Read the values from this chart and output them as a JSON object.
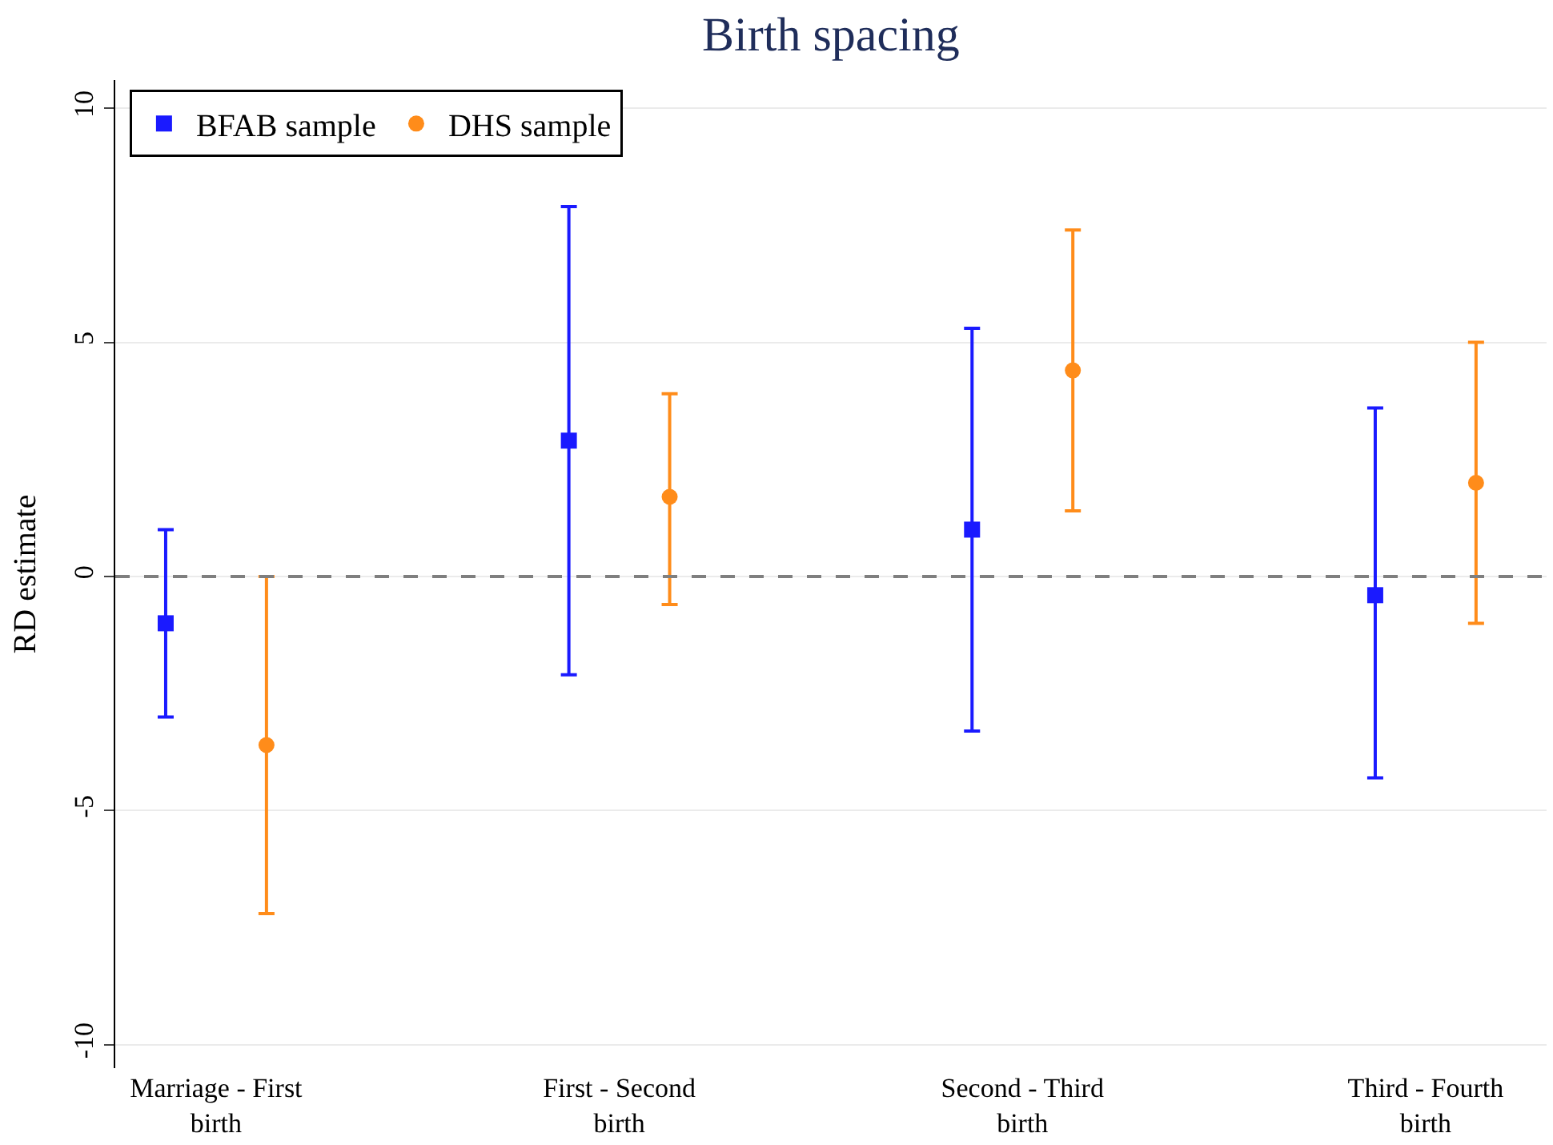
{
  "chart_data": {
    "type": "scatter",
    "title": "Birth spacing",
    "ylabel": "RD estimate",
    "categories": [
      "Marriage - First birth",
      "First - Second birth",
      "Second - Third birth",
      "Third - Fourth birth"
    ],
    "series": [
      {
        "name": "BFAB sample",
        "color": "#1a1aff",
        "marker": "square",
        "values": [
          -1.0,
          2.9,
          1.0,
          -0.4
        ],
        "errors": [
          [
            -3.0,
            1.0
          ],
          [
            -2.1,
            7.9
          ],
          [
            -3.3,
            5.3
          ],
          [
            -4.3,
            3.6
          ]
        ]
      },
      {
        "name": "DHS sample",
        "color": "#ff8c1a",
        "marker": "circle",
        "values": [
          -3.6,
          1.7,
          4.4,
          2.0
        ],
        "errors": [
          [
            -7.2,
            0.0
          ],
          [
            -0.6,
            3.9
          ],
          [
            1.4,
            7.4
          ],
          [
            -1.0,
            5.0
          ]
        ]
      }
    ],
    "ylim": [
      -10.5,
      10.6
    ],
    "yticks": [
      -10,
      -5,
      0,
      5,
      10
    ],
    "grid": "y",
    "legend": "top left",
    "ref_lines": [
      {
        "axis": "y",
        "value": 0,
        "color": "#7f7f7f",
        "line_style": "dashed"
      }
    ]
  }
}
